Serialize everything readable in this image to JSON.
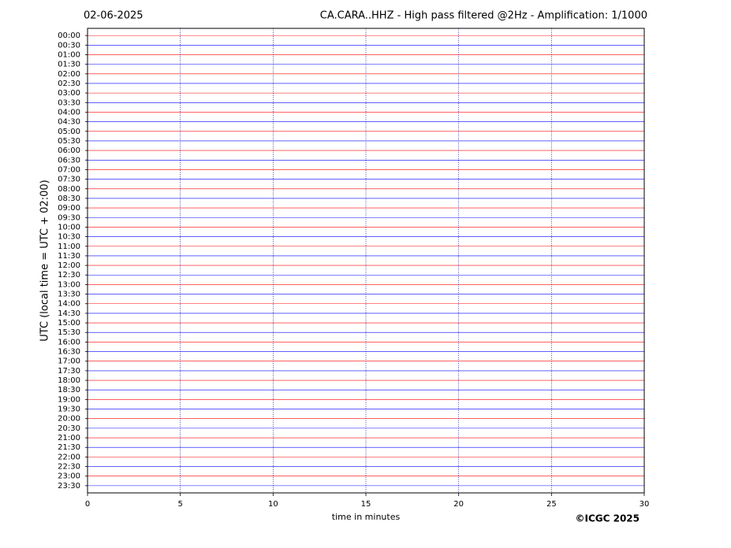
{
  "chart_data": {
    "type": "helicorder",
    "date": "02-06-2025",
    "title": "CA.CARA..HHZ - High pass filtered @2Hz - Amplification: 1/1000",
    "x_label": "time in minutes",
    "y_label": "UTC (local time = UTC + 02:00)",
    "credit": "©ICGC 2025",
    "categories": [
      "00:00",
      "00:30",
      "01:00",
      "01:30",
      "02:00",
      "02:30",
      "03:00",
      "03:30",
      "04:00",
      "04:30",
      "05:00",
      "05:30",
      "06:00",
      "06:30",
      "07:00",
      "07:30",
      "08:00",
      "08:30",
      "09:00",
      "09:30",
      "10:00",
      "10:30",
      "11:00",
      "11:30",
      "12:00",
      "12:30",
      "13:00",
      "13:30",
      "14:00",
      "14:30",
      "15:00",
      "15:30",
      "16:00",
      "16:30",
      "17:00",
      "17:30",
      "18:00",
      "18:30",
      "19:00",
      "19:30",
      "20:00",
      "20:30",
      "21:00",
      "21:30",
      "22:00",
      "22:30",
      "23:00",
      "23:30"
    ],
    "row_colors": [
      "#ff0000",
      "#0000ff"
    ],
    "xlim": [
      0,
      30
    ],
    "xticks": [
      0,
      5,
      10,
      15,
      20,
      25,
      30
    ],
    "grid": true
  }
}
